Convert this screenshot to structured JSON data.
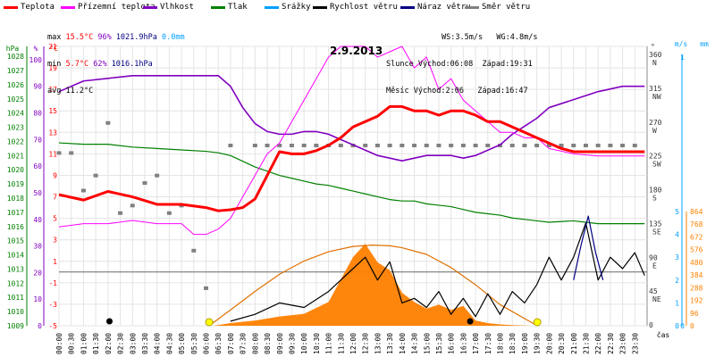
{
  "chart_data": {
    "type": "line",
    "title": "2.9.2013",
    "legend": [
      {
        "name": "Teplota",
        "color": "#ff0000"
      },
      {
        "name": "Přízemní teplota",
        "color": "#ff00ff"
      },
      {
        "name": "Vlhkost",
        "color": "#8000c0"
      },
      {
        "name": "Tlak",
        "color": "#008000"
      },
      {
        "name": "Srážky",
        "color": "#00a0ff"
      },
      {
        "name": "Rychlost větru",
        "color": "#000000"
      },
      {
        "name": "Náraz větru",
        "color": "#000080"
      },
      {
        "name": "Směr větru",
        "color": "#808080"
      }
    ],
    "stats": {
      "max_label": "max",
      "max_temp": "15.5°C",
      "max_hum": "96%",
      "max_press": "1021.9hPa",
      "max_rain": "0.0mm",
      "min_label": "min",
      "min_temp": "5.7°C",
      "min_hum": "62%",
      "min_press": "1016.1hPa",
      "avg_label": "avg",
      "avg_temp": "11.2°C"
    },
    "wind_sun": {
      "ws": "WS:3.5m/s",
      "wg": "WG:4.8m/s",
      "slunce": "Slunce Východ:06:08",
      "slunce_zapad": "Západ:19:31",
      "mesic": "Měsíc Východ:2:06",
      "mesic_zapad": "Západ:16:47"
    },
    "axes": {
      "hpa_unit": "hPa",
      "pct_unit": "%",
      "c_unit": "°C",
      "deg_unit": "°",
      "ms_unit": "m/s",
      "mm_unit": "mm",
      "hpa_ticks": [
        "1028",
        "1027",
        "1026",
        "1025",
        "1024",
        "1023",
        "1022",
        "1021",
        "1020",
        "1019",
        "1018",
        "1017",
        "1016",
        "1015",
        "1014",
        "1013",
        "1012",
        "1011",
        "1010",
        "1009"
      ],
      "pct_ticks": [
        "100",
        "90",
        "80",
        "70",
        "60",
        "50",
        "40",
        "30",
        "20",
        "10",
        "0"
      ],
      "c_ticks": [
        "21",
        "19",
        "17",
        "15",
        "13",
        "11",
        "9",
        "7",
        "5",
        "3",
        "1",
        "-1",
        "-3",
        "-5"
      ],
      "dir_ticks": [
        {
          "deg": "360",
          "dir": "N"
        },
        {
          "deg": "315",
          "dir": "NW"
        },
        {
          "deg": "270",
          "dir": "W"
        },
        {
          "deg": "225",
          "dir": "SW"
        },
        {
          "deg": "180",
          "dir": "S"
        },
        {
          "deg": "135",
          "dir": "SE"
        },
        {
          "deg": "90",
          "dir": "E"
        },
        {
          "deg": "45",
          "dir": "NE"
        },
        {
          "deg": "0",
          "dir": ""
        }
      ],
      "ms_ticks": [
        "5",
        "4",
        "3",
        "2",
        "1",
        "0"
      ],
      "mm_ticks": [
        "1",
        "0"
      ],
      "rad_ticks": [
        "864",
        "768",
        "672",
        "576",
        "480",
        "384",
        "288",
        "192",
        "96",
        "0"
      ],
      "time_label": "čas",
      "x_ticks": [
        "00:00",
        "00:30",
        "01:00",
        "01:30",
        "02:00",
        "02:30",
        "03:00",
        "03:30",
        "04:00",
        "04:30",
        "05:00",
        "05:30",
        "06:00",
        "06:30",
        "07:00",
        "07:30",
        "08:00",
        "08:30",
        "09:00",
        "09:30",
        "10:00",
        "10:30",
        "11:00",
        "11:30",
        "12:00",
        "12:30",
        "13:00",
        "13:30",
        "14:00",
        "14:30",
        "15:00",
        "15:30",
        "16:00",
        "16:30",
        "17:00",
        "17:30",
        "18:00",
        "18:30",
        "19:00",
        "19:30",
        "20:00",
        "20:30",
        "21:00",
        "21:30",
        "22:00",
        "22:30",
        "23:00",
        "23:30"
      ]
    },
    "series": {
      "temp": {
        "name": "Teplota",
        "color": "#ff0000",
        "unit": "°C",
        "x": [
          0,
          1,
          2,
          3,
          4,
          5,
          6,
          6.5,
          7,
          7.5,
          8,
          8.5,
          9,
          9.5,
          10,
          10.5,
          11,
          11.5,
          12,
          12.5,
          13,
          13.5,
          14,
          14.5,
          15,
          15.5,
          16,
          16.5,
          17,
          17.5,
          18,
          18.5,
          19,
          19.5,
          20,
          20.5,
          21,
          22,
          23,
          23.9
        ],
        "y": [
          7.2,
          6.7,
          7.5,
          7.0,
          6.3,
          6.3,
          6.0,
          5.7,
          5.8,
          6.0,
          6.8,
          9.0,
          11.2,
          11.0,
          11.0,
          11.3,
          11.8,
          12.5,
          13.5,
          14.0,
          14.5,
          15.4,
          15.4,
          15.0,
          15.0,
          14.6,
          15.0,
          15.0,
          14.6,
          14.0,
          14.0,
          13.5,
          13.0,
          12.5,
          12.0,
          11.5,
          11.2,
          11.2,
          11.2,
          11.2
        ]
      },
      "ground": {
        "name": "Přízemní teplota",
        "color": "#ff00ff",
        "unit": "°C",
        "x": [
          0,
          1,
          2,
          3,
          4,
          5,
          5.5,
          6,
          6.5,
          7,
          7.5,
          8,
          8.5,
          9,
          9.5,
          10,
          10.5,
          11,
          11.5,
          12,
          12.5,
          13,
          13.5,
          14,
          14.5,
          15,
          15.5,
          16,
          16.5,
          17,
          17.5,
          18,
          18.5,
          19,
          19.5,
          20,
          21,
          22,
          23,
          23.9
        ],
        "y": [
          4.2,
          4.5,
          4.5,
          4.8,
          4.5,
          4.5,
          3.5,
          3.5,
          4.0,
          5.0,
          7.0,
          9.0,
          11.0,
          12.0,
          14.0,
          16.0,
          18.0,
          20.0,
          21.0,
          21.0,
          21.0,
          20.0,
          20.5,
          21.0,
          19.0,
          20.0,
          17.0,
          18.0,
          16.0,
          15.0,
          14.0,
          13.0,
          13.0,
          12.5,
          12.5,
          11.5,
          11.0,
          10.8,
          10.8,
          10.8
        ]
      },
      "humidity": {
        "name": "Vlhkost",
        "color": "#8000c0",
        "unit": "%",
        "x": [
          0,
          1,
          2,
          3,
          4,
          5,
          6,
          6.5,
          7,
          7.5,
          8,
          8.5,
          9,
          9.5,
          10,
          10.5,
          11,
          11.5,
          12,
          12.5,
          13,
          13.5,
          14,
          14.5,
          15,
          15.5,
          16,
          16.5,
          17,
          17.5,
          18,
          18.5,
          19,
          19.5,
          20,
          21,
          22,
          23,
          23.9
        ],
        "y": [
          88,
          92,
          93,
          94,
          94,
          94,
          94,
          94,
          90,
          82,
          76,
          73,
          72,
          72,
          73,
          73,
          72,
          70,
          68,
          66,
          64,
          63,
          62,
          63,
          64,
          64,
          64,
          63,
          64,
          66,
          68,
          72,
          75,
          78,
          82,
          85,
          88,
          90,
          90
        ]
      },
      "pressure": {
        "name": "Tlak",
        "color": "#008000",
        "unit": "hPa",
        "x": [
          0,
          1,
          2,
          3,
          4,
          5,
          6,
          6.5,
          7,
          7.5,
          8,
          8.5,
          9,
          9.5,
          10,
          10.5,
          11,
          11.5,
          12,
          12.5,
          13,
          13.5,
          14,
          14.5,
          15,
          15.5,
          16,
          16.5,
          17,
          17.5,
          18,
          18.5,
          19,
          19.5,
          20,
          21,
          22,
          23,
          23.9
        ],
        "y": [
          1021.9,
          1021.8,
          1021.8,
          1021.6,
          1021.5,
          1021.4,
          1021.3,
          1021.2,
          1021.0,
          1020.6,
          1020.2,
          1019.9,
          1019.6,
          1019.4,
          1019.2,
          1019.0,
          1018.9,
          1018.7,
          1018.5,
          1018.3,
          1018.1,
          1017.9,
          1017.8,
          1017.8,
          1017.6,
          1017.5,
          1017.4,
          1017.2,
          1017.0,
          1016.9,
          1016.8,
          1016.6,
          1016.5,
          1016.4,
          1016.3,
          1016.4,
          1016.2,
          1016.2,
          1016.2
        ]
      },
      "radiation": {
        "name": "Radiace",
        "color": "#ff8000",
        "unit": "W/m²",
        "x": [
          6.3,
          7,
          8,
          9,
          10,
          11,
          12,
          12.5,
          13,
          13.5,
          14,
          14.5,
          15,
          15.5,
          16,
          16.5,
          17,
          17.5,
          18,
          18.5,
          19.3
        ],
        "y": [
          0,
          20,
          40,
          70,
          90,
          180,
          520,
          620,
          480,
          420,
          250,
          180,
          130,
          160,
          120,
          150,
          40,
          20,
          10,
          5,
          0
        ]
      },
      "wind": {
        "name": "Rychlost větru",
        "color": "#000000",
        "unit": "m/s",
        "x": [
          7,
          8,
          9,
          10,
          11,
          11.5,
          12,
          12.5,
          13,
          13.5,
          14,
          14.5,
          15,
          15.5,
          16,
          16.5,
          17,
          17.5,
          18,
          18.5,
          19,
          19.5,
          20,
          20.5,
          21,
          21.5,
          22,
          22.5,
          23,
          23.5,
          23.9
        ],
        "y": [
          0.2,
          0.5,
          1.0,
          0.8,
          1.5,
          2.0,
          2.5,
          3.0,
          2.0,
          2.8,
          1.0,
          1.2,
          0.8,
          1.5,
          0.5,
          1.2,
          0.4,
          1.4,
          0.5,
          1.5,
          1.0,
          1.8,
          3.0,
          2.0,
          3.0,
          4.5,
          2.0,
          3.0,
          2.5,
          3.2,
          2.2
        ]
      },
      "gust": {
        "name": "Náraz větru",
        "color": "#000080",
        "unit": "m/s",
        "x": [
          21.0,
          21.3,
          21.6,
          21.9,
          22.2
        ],
        "y": [
          2.0,
          3.5,
          4.8,
          3.2,
          2.0
        ]
      },
      "direction": {
        "name": "Směr větru",
        "color": "#808080",
        "unit": "°",
        "x": [
          0,
          0.5,
          1,
          1.5,
          2,
          2.5,
          3,
          3.5,
          4,
          4.5,
          5,
          5.5,
          6,
          7,
          8,
          8.5,
          9,
          9.5,
          10,
          10.5,
          11,
          11.5,
          12,
          12.5,
          13,
          13.5,
          14,
          14.5,
          15,
          15.5,
          16,
          16.5,
          17,
          17.5,
          18,
          18.5,
          19,
          19.5,
          20,
          20.5,
          21,
          21.5,
          22,
          22.5,
          23,
          23.5
        ],
        "y": [
          230,
          230,
          180,
          200,
          270,
          150,
          160,
          190,
          200,
          150,
          160,
          100,
          50,
          240,
          240,
          240,
          240,
          240,
          240,
          240,
          240,
          240,
          240,
          240,
          240,
          240,
          240,
          240,
          240,
          240,
          240,
          240,
          240,
          240,
          240,
          240,
          240,
          240,
          240,
          240,
          240,
          240,
          240,
          240,
          240,
          240
        ]
      },
      "sun_curve": {
        "name": "Slunce",
        "color": "#e07000",
        "unit": "",
        "x": [
          6.13,
          7,
          8,
          9,
          10,
          11,
          12,
          12.8,
          13.5,
          14,
          15,
          16,
          17,
          18,
          19.52
        ],
        "y": [
          0,
          120,
          260,
          390,
          490,
          560,
          600,
          610,
          605,
          590,
          540,
          440,
          310,
          160,
          0
        ]
      }
    },
    "markers": {
      "sunrise": "06:08",
      "sunset": "19:31"
    }
  }
}
